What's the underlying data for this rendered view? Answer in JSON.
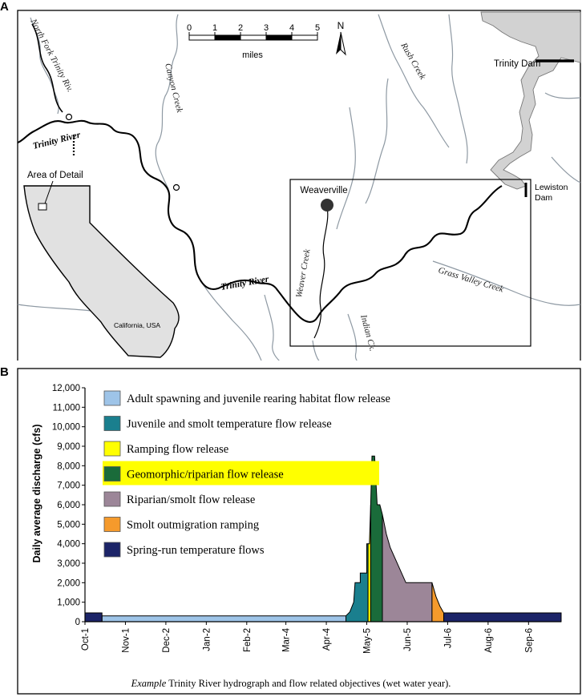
{
  "panels": {
    "a": "A",
    "b": "B"
  },
  "map": {
    "scale": {
      "ticks": [
        "0",
        "1",
        "2",
        "3",
        "4",
        "5"
      ],
      "unit": "miles"
    },
    "north": "N",
    "labels": {
      "north_fork": "North Fork Trinity Riv.",
      "canyon_creek": "Canyon Creek",
      "rush_creek": "Rush Creek",
      "trinity_river_1": "Trinity River",
      "trinity_river_2": "Trinity River",
      "weaverville": "Weaverville",
      "weaver_creek": "Weaver Creek",
      "indian_ck": "Indian Ck.",
      "grass_valley": "Grass Valley Creek",
      "trinity_dam": "Trinity Dam",
      "lewiston": "Lewiston",
      "dam": "Dam",
      "area_detail": "Area of Detail",
      "california": "California, USA"
    }
  },
  "chart_data": {
    "type": "area",
    "ylabel": "Daily average discharge (cfs)",
    "ylim": [
      0,
      12000
    ],
    "y_ticks": [
      "0",
      "1,000",
      "2,000",
      "3,000",
      "4,000",
      "5,000",
      "6,000",
      "7,000",
      "8,000",
      "9,000",
      "10,000",
      "11,000",
      "12,000"
    ],
    "x_ticks": [
      "Oct-1",
      "Nov-1",
      "Dec-2",
      "Jan-2",
      "Feb-2",
      "Mar-4",
      "Apr-4",
      "May-5",
      "Jun-5",
      "Jul-6",
      "Aug-6",
      "Sep-6"
    ],
    "x_tick_days": [
      0,
      31,
      62,
      93,
      124,
      154,
      185,
      216,
      247,
      278,
      309,
      340
    ],
    "xlim_days": [
      0,
      365
    ],
    "series": [
      {
        "name": "Adult spawning and juvenile rearing habitat flow release",
        "color": "#9ec4e8",
        "points": [
          [
            13,
            0
          ],
          [
            13,
            300
          ],
          [
            200,
            300
          ],
          [
            200,
            0
          ]
        ]
      },
      {
        "name": "Juvenile and smolt temperature flow release",
        "color": "#1a7f8e",
        "points": [
          [
            200,
            0
          ],
          [
            200,
            300
          ],
          [
            203,
            500
          ],
          [
            206,
            1000
          ],
          [
            207,
            2000
          ],
          [
            211,
            2000
          ],
          [
            211,
            2500
          ],
          [
            216,
            2500
          ],
          [
            216,
            4000
          ],
          [
            217,
            4000
          ],
          [
            217,
            0
          ]
        ]
      },
      {
        "name": "Ramping flow release",
        "color": "#ffff00",
        "points": [
          [
            217,
            0
          ],
          [
            217,
            4000
          ],
          [
            218,
            4000
          ],
          [
            219,
            6000
          ],
          [
            219,
            0
          ]
        ]
      },
      {
        "name": "Geomorphic/riparian flow release",
        "color": "#1a6b3a",
        "points": [
          [
            219,
            0
          ],
          [
            219,
            6000
          ],
          [
            220,
            8500
          ],
          [
            222,
            8500
          ],
          [
            224,
            6000
          ],
          [
            226,
            6000
          ],
          [
            228,
            5500
          ],
          [
            228,
            0
          ]
        ]
      },
      {
        "name": "Riparian/smolt flow release",
        "color": "#9c8698",
        "points": [
          [
            228,
            0
          ],
          [
            228,
            5500
          ],
          [
            231,
            4500
          ],
          [
            234,
            3800
          ],
          [
            238,
            3200
          ],
          [
            242,
            2600
          ],
          [
            246,
            2000
          ],
          [
            266,
            2000
          ],
          [
            266,
            0
          ]
        ]
      },
      {
        "name": "Smolt outmigration ramping",
        "color": "#f59a2c",
        "points": [
          [
            266,
            0
          ],
          [
            266,
            2000
          ],
          [
            269,
            1300
          ],
          [
            272,
            800
          ],
          [
            275,
            450
          ],
          [
            275,
            0
          ]
        ]
      },
      {
        "name": "Spring-run temperature flows",
        "color": "#1c2468",
        "points": [
          [
            275,
            0
          ],
          [
            275,
            450
          ],
          [
            365,
            450
          ],
          [
            365,
            0
          ]
        ]
      },
      {
        "name": "",
        "color": "#1c2468",
        "points": [
          [
            0,
            0
          ],
          [
            0,
            450
          ],
          [
            13,
            450
          ],
          [
            13,
            0
          ]
        ]
      }
    ],
    "highlight": "Geomorphic/riparian flow release"
  },
  "caption": {
    "prefix": "Example",
    "text": " Trinity River hydrograph and flow related objectives (wet water year)."
  }
}
